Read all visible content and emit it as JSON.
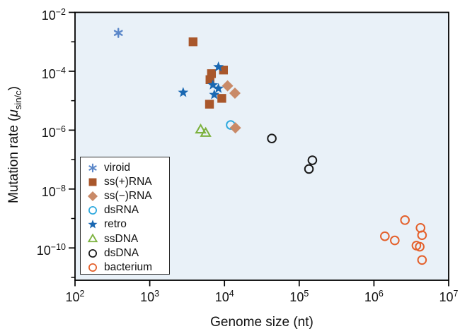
{
  "labels": {
    "xlabel": "Genome size (nt)",
    "ylabel_prefix": "Mutation rate (",
    "ylabel_mu": "μ",
    "ylabel_sub": "sin/c",
    "ylabel_suffix": ")"
  },
  "colors": {
    "plot_background": "#e9f1f8",
    "axis": "#000000",
    "legend_border": "#2b2b2b"
  },
  "chart_data": {
    "type": "scatter",
    "title": "",
    "xlabel": "Genome size (nt)",
    "ylabel": "Mutation rate (μ_sin/c)",
    "x_scale": "log",
    "y_scale": "log",
    "xlim": [
      100,
      10000000
    ],
    "ylim": [
      8e-12,
      0.01
    ],
    "x_tick_exponents": [
      2,
      3,
      4,
      5,
      6,
      7
    ],
    "y_tick_exponents_labeled": [
      -2,
      -4,
      -6,
      -8,
      -10
    ],
    "y_tick_exponents_minor": [
      -3,
      -5,
      -7,
      -9,
      -11
    ],
    "grid": false,
    "legend_position": "lower-left",
    "series": [
      {
        "name": "viroid",
        "marker": "asterisk",
        "color": "#5b87c9",
        "filled": false,
        "z": 0,
        "points": [
          [
            380,
            0.002
          ]
        ]
      },
      {
        "name": "ss(+)RNA",
        "marker": "square",
        "color": "#a9572b",
        "filled": true,
        "z": 1,
        "points": [
          [
            3800,
            0.001
          ],
          [
            9700,
            0.00011
          ],
          [
            6700,
            8.3e-05
          ],
          [
            6400,
            5.2e-05
          ],
          [
            9200,
            1.2e-05
          ],
          [
            6300,
            7.6e-06
          ]
        ]
      },
      {
        "name": "ss(−)RNA",
        "marker": "diamond",
        "color": "#c98a68",
        "filled": true,
        "z": 3,
        "points": [
          [
            11000,
            3.2e-05
          ],
          [
            13800,
            1.8e-05
          ],
          [
            14000,
            1.2e-06
          ]
        ]
      },
      {
        "name": "dsRNA",
        "marker": "circle",
        "color": "#2ea9de",
        "filled": false,
        "z": 2,
        "points": [
          [
            12100,
            1.5e-06
          ]
        ]
      },
      {
        "name": "retro",
        "marker": "star",
        "color": "#1a68b2",
        "filled": true,
        "z": 5,
        "points": [
          [
            8300,
            0.00014
          ],
          [
            7000,
            3.4e-05
          ],
          [
            8300,
            2.6e-05
          ],
          [
            7300,
            1.6e-05
          ],
          [
            2800,
            1.9e-05
          ]
        ]
      },
      {
        "name": "ssDNA",
        "marker": "triangle",
        "color": "#7db23f",
        "filled": false,
        "z": 2,
        "points": [
          [
            4800,
            1e-06
          ],
          [
            5600,
            7.7e-07
          ]
        ]
      },
      {
        "name": "dsDNA",
        "marker": "circle",
        "color": "#1a1a1a",
        "filled": false,
        "z": 2,
        "points": [
          [
            43000,
            5.2e-07
          ],
          [
            150000,
            9.5e-08
          ],
          [
            135000,
            4.8e-08
          ]
        ]
      },
      {
        "name": "bacterium",
        "marker": "circle",
        "color": "#e4602b",
        "filled": false,
        "z": 2,
        "points": [
          [
            2600000,
            8.8e-10
          ],
          [
            4200000,
            4.8e-10
          ],
          [
            4400000,
            2.7e-10
          ],
          [
            1400000,
            2.5e-10
          ],
          [
            1900000,
            1.8e-10
          ],
          [
            3700000,
            1.2e-10
          ],
          [
            4100000,
            1.1e-10
          ],
          [
            4400000,
            3.9e-11
          ]
        ]
      }
    ]
  }
}
